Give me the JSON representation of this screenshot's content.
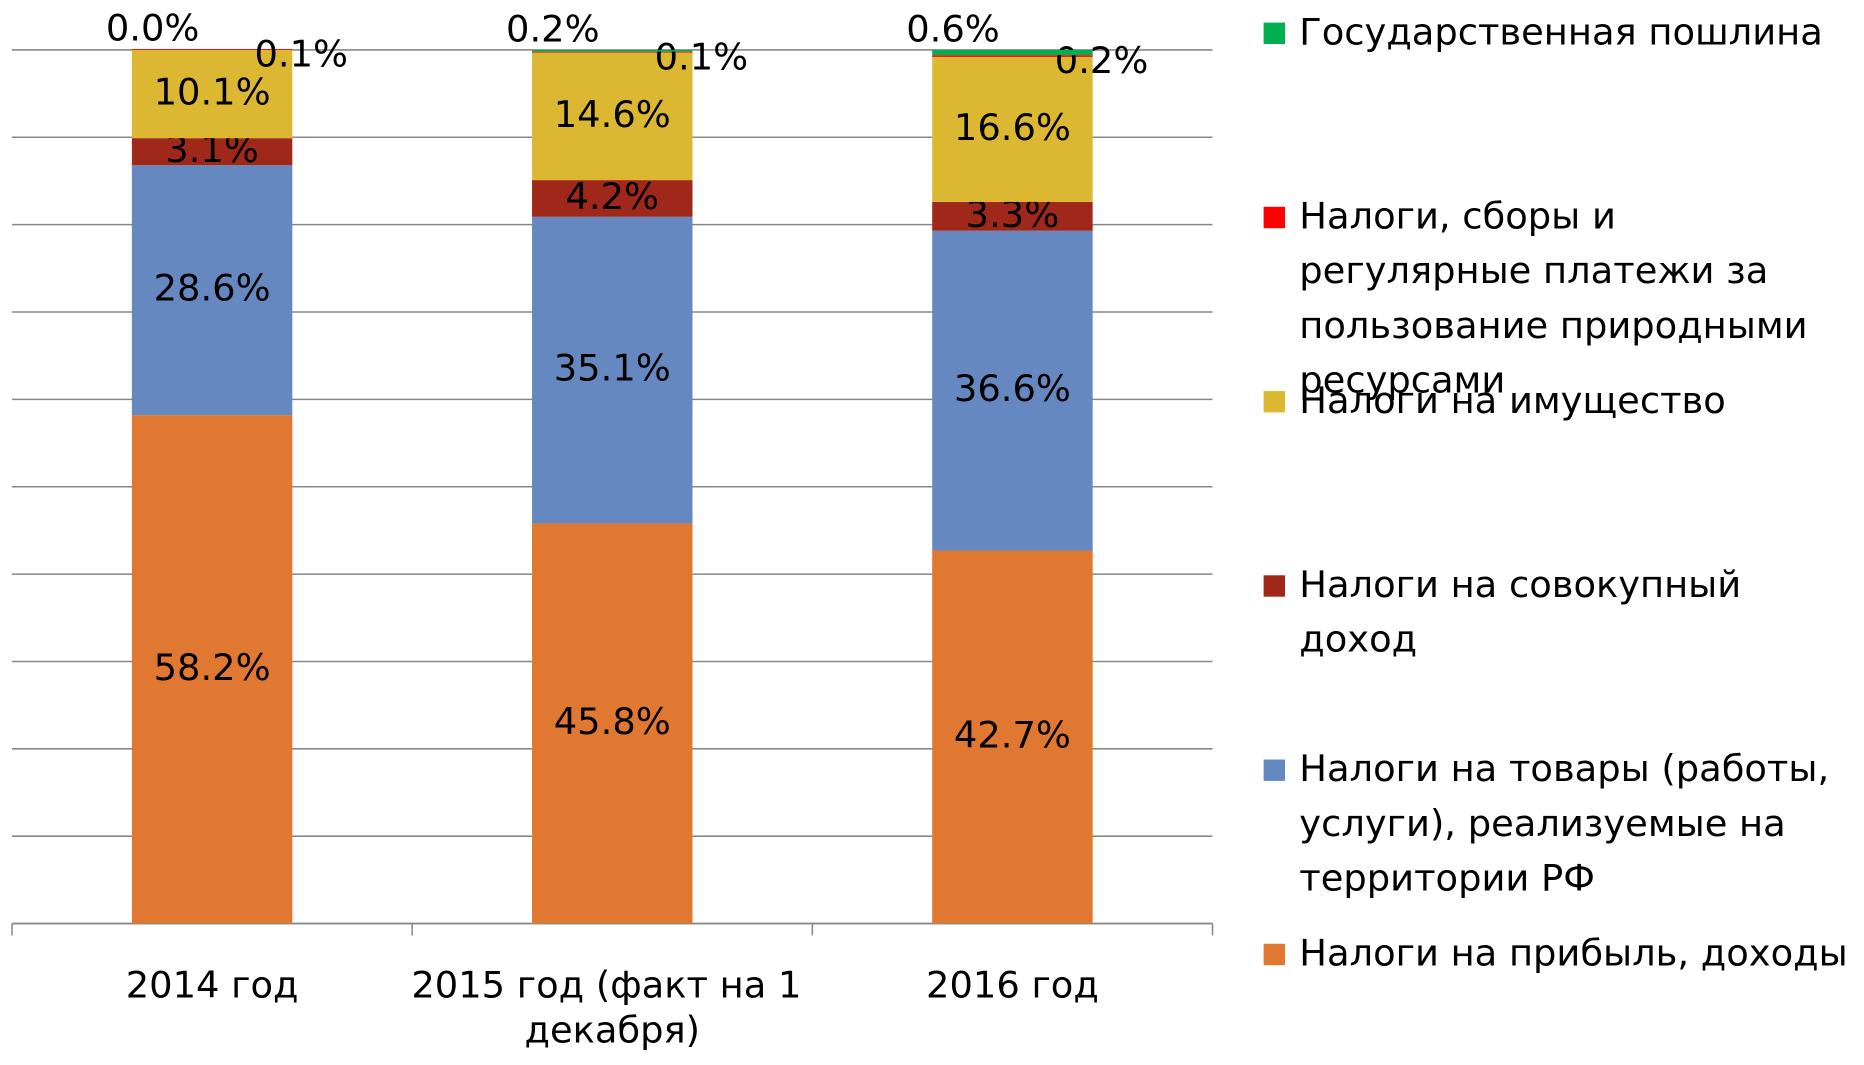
{
  "chart_data": {
    "type": "stacked_bar",
    "categories": [
      "2014 год",
      "2015 год (факт на 1 декабря)",
      "2016 год"
    ],
    "ylim": [
      0,
      100
    ],
    "yticks": [
      0,
      10,
      20,
      30,
      40,
      50,
      60,
      70,
      80,
      90,
      100
    ],
    "grid": true,
    "series": [
      {
        "name": "Налоги на прибыль, доходы",
        "color": "#e07832",
        "values": [
          58.2,
          45.8,
          42.7
        ],
        "value_labels": [
          "58.2%",
          "45.8%",
          "42.7%"
        ]
      },
      {
        "name": "Налоги на товары (работы, услуги), реализуемые на территории РФ",
        "color": "#6688c0",
        "values": [
          28.6,
          35.1,
          36.6
        ],
        "value_labels": [
          "28.6%",
          "35.1%",
          "36.6%"
        ]
      },
      {
        "name": "Налоги на совокупный доход",
        "color": "#a0281a",
        "values": [
          3.1,
          4.2,
          3.3
        ],
        "value_labels": [
          "3.1%",
          "4.2%",
          "3.3%"
        ]
      },
      {
        "name": "Налоги на имущество",
        "color": "#dcb832",
        "values": [
          10.1,
          14.6,
          16.6
        ],
        "value_labels": [
          "10.1%",
          "14.6%",
          "16.6%"
        ]
      },
      {
        "name": "Налоги, сборы и регулярные платежи за пользование природными ресурсами",
        "color": "#ff0000",
        "values": [
          0.1,
          0.1,
          0.2
        ],
        "value_labels": [
          "0.1%",
          "0.1%",
          "0.2%"
        ]
      },
      {
        "name": "Государственная пошлина",
        "color": "#00b050",
        "values": [
          0.0,
          0.2,
          0.6
        ],
        "value_labels": [
          "0.0%",
          "0.2%",
          "0.6%"
        ]
      }
    ]
  }
}
